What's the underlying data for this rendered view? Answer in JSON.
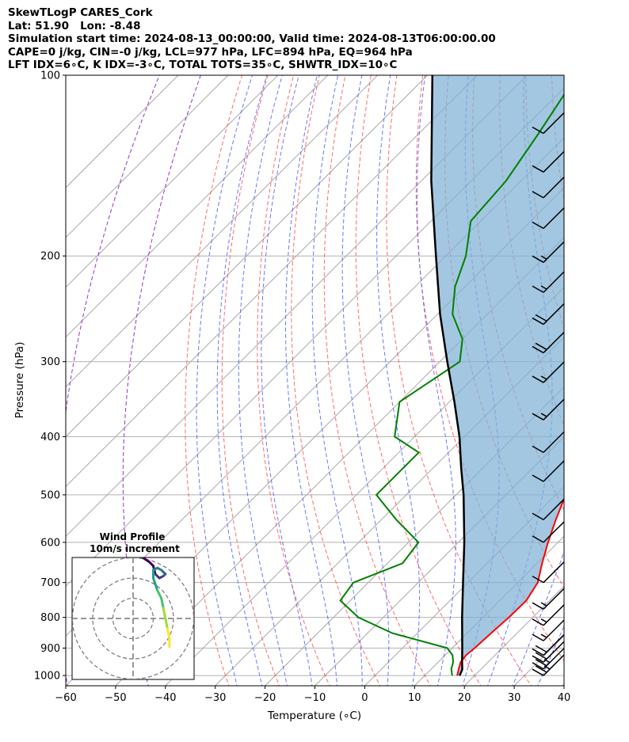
{
  "header": {
    "line1": "SkewTLogP CARES_Cork",
    "line2": "Lat: 51.90   Lon: -8.48",
    "line3": "Simulation start time: 2024-08-13_00:00:00, Valid time: 2024-08-13T06:00:00.00",
    "line4": "CAPE=0 j/kg, CIN=-0 j/kg, LCL=977 hPa, LFC=894 hPa, EQ=964 hPa",
    "line5": "LFT IDX=6∘C, K IDX=-3∘C, TOTAL TOTS=35∘C, SHWTR_IDX=10∘C"
  },
  "chart_data": {
    "type": "line",
    "xlabel": "Temperature (∘C)",
    "ylabel": "Pressure (hPa)",
    "xlim": [
      -60,
      40
    ],
    "ylim": [
      1040,
      100
    ],
    "yscale": "log",
    "skew": true,
    "x_ticks": [
      "−60",
      "−50",
      "−40",
      "−30",
      "−20",
      "−10",
      "0",
      "10",
      "20",
      "30",
      "40"
    ],
    "y_ticks": [
      "100",
      "200",
      "300",
      "400",
      "500",
      "600",
      "700",
      "800",
      "900",
      "1000"
    ],
    "series": [
      {
        "name": "temperature",
        "color": "#ff0000",
        "points": [
          [
            1000,
            16.5
          ],
          [
            975,
            15.5
          ],
          [
            950,
            14.5
          ],
          [
            925,
            14.2
          ],
          [
            900,
            14.5
          ],
          [
            850,
            14.8
          ],
          [
            800,
            15.2
          ],
          [
            750,
            15.3
          ],
          [
            700,
            14.0
          ],
          [
            650,
            11.0
          ],
          [
            600,
            8.0
          ],
          [
            550,
            5.0
          ],
          [
            500,
            2.0
          ],
          [
            450,
            -3.0
          ],
          [
            400,
            -8.0
          ],
          [
            350,
            -14.0
          ],
          [
            300,
            -21.0
          ],
          [
            275,
            -26.0
          ],
          [
            250,
            -31.0
          ],
          [
            225,
            -38.0
          ],
          [
            200,
            -44.0
          ],
          [
            175,
            -50.0
          ],
          [
            150,
            -56.0
          ],
          [
            125,
            -62.0
          ],
          [
            110,
            -64.0
          ],
          [
            100,
            -65.0
          ]
        ]
      },
      {
        "name": "dewpoint",
        "color": "#008000",
        "points": [
          [
            1000,
            15.5
          ],
          [
            975,
            14.0
          ],
          [
            950,
            13.0
          ],
          [
            925,
            11.5
          ],
          [
            900,
            9.0
          ],
          [
            850,
            -5.0
          ],
          [
            800,
            -15.0
          ],
          [
            750,
            -22.0
          ],
          [
            700,
            -23.0
          ],
          [
            650,
            -17.0
          ],
          [
            600,
            -18.0
          ],
          [
            550,
            -27.0
          ],
          [
            500,
            -36.0
          ],
          [
            450,
            -36.0
          ],
          [
            425,
            -36.0
          ],
          [
            400,
            -44.0
          ],
          [
            350,
            -50.0
          ],
          [
            300,
            -46.0
          ],
          [
            275,
            -50.0
          ],
          [
            250,
            -57.0
          ],
          [
            225,
            -62.0
          ],
          [
            200,
            -66.0
          ],
          [
            175,
            -72.0
          ],
          [
            150,
            -73.0
          ],
          [
            125,
            -76.0
          ],
          [
            100,
            -80.0
          ]
        ]
      },
      {
        "name": "parcel",
        "color": "#000000",
        "points": [
          [
            1000,
            17.0
          ],
          [
            977,
            16.3
          ],
          [
            950,
            14.8
          ],
          [
            900,
            12.0
          ],
          [
            850,
            9.0
          ],
          [
            800,
            5.8
          ],
          [
            700,
            -1.0
          ],
          [
            600,
            -8.8
          ],
          [
            500,
            -18.5
          ],
          [
            450,
            -24.5
          ],
          [
            400,
            -31.0
          ],
          [
            350,
            -39.0
          ],
          [
            300,
            -48.5
          ],
          [
            250,
            -59.5
          ],
          [
            200,
            -72.0
          ],
          [
            150,
            -88.0
          ],
          [
            100,
            -109.0
          ]
        ]
      }
    ],
    "wind_barbs": [
      {
        "p": 1000,
        "kt": 25
      },
      {
        "p": 975,
        "kt": 25
      },
      {
        "p": 950,
        "kt": 20
      },
      {
        "p": 925,
        "kt": 20
      },
      {
        "p": 875,
        "kt": 15
      },
      {
        "p": 825,
        "kt": 15
      },
      {
        "p": 775,
        "kt": 15
      },
      {
        "p": 700,
        "kt": 10
      },
      {
        "p": 600,
        "kt": 10
      },
      {
        "p": 550,
        "kt": 10
      },
      {
        "p": 475,
        "kt": 10
      },
      {
        "p": 425,
        "kt": 10
      },
      {
        "p": 375,
        "kt": 15
      },
      {
        "p": 325,
        "kt": 15
      },
      {
        "p": 290,
        "kt": 20
      },
      {
        "p": 260,
        "kt": 20
      },
      {
        "p": 230,
        "kt": 15
      },
      {
        "p": 205,
        "kt": 15
      },
      {
        "p": 180,
        "kt": 10
      },
      {
        "p": 160,
        "kt": 10
      },
      {
        "p": 145,
        "kt": 10
      },
      {
        "p": 125,
        "kt": 10
      }
    ],
    "hodograph": {
      "title": "Wind Profile",
      "subtitle": "10m/s increment",
      "rings_ms": [
        10,
        20,
        30
      ],
      "trace": [
        [
          5,
          -30
        ],
        [
          8,
          -28
        ],
        [
          10,
          -26
        ],
        [
          11,
          -22
        ],
        [
          13,
          -20
        ],
        [
          15,
          -21
        ],
        [
          16,
          -22
        ],
        [
          14,
          -24
        ],
        [
          12,
          -25
        ],
        [
          10,
          -24
        ],
        [
          10,
          -20
        ],
        [
          12,
          -14
        ],
        [
          14,
          -10
        ],
        [
          15,
          -5
        ],
        [
          16,
          0
        ],
        [
          17,
          5
        ],
        [
          18,
          10
        ],
        [
          18,
          14
        ]
      ],
      "colors": [
        "#440154",
        "#46327e",
        "#365c8d",
        "#277f8e",
        "#1fa187",
        "#4ac16d",
        "#a0da39",
        "#fde725"
      ]
    }
  }
}
